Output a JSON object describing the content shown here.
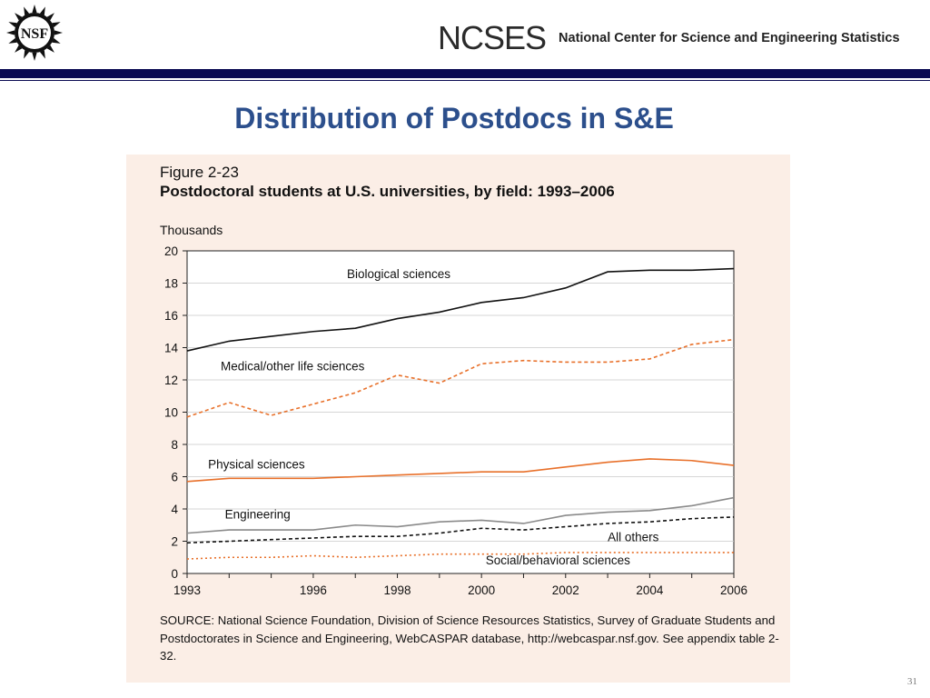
{
  "header": {
    "logo_text": "NSF",
    "org_abbr": "NCSES",
    "org_name": "National Center for Science and Engineering Statistics"
  },
  "slide": {
    "title": "Distribution of Postdocs in S&E",
    "page_number": "31"
  },
  "figure": {
    "label": "Figure 2-23",
    "title": "Postdoctoral students at U.S. universities, by field: 1993–2006",
    "units": "Thousands",
    "source": "SOURCE: National Science Foundation, Division of Science Resources Statistics, Survey of Graduate Students and Postdoctorates in Science and Engineering, WebCASPAR database, http://webcaspar.nsf.gov. See appendix table 2-32."
  },
  "chart_data": {
    "type": "line",
    "ylim": [
      0,
      20
    ],
    "xlim": [
      1993,
      2006
    ],
    "yticks": [
      0,
      2,
      4,
      6,
      8,
      10,
      12,
      14,
      16,
      18,
      20
    ],
    "xticks": [
      1993,
      1996,
      1998,
      2000,
      2002,
      2004,
      2006
    ],
    "grid": true,
    "x": [
      1993,
      1994,
      1995,
      1996,
      1997,
      1998,
      1999,
      2000,
      2001,
      2002,
      2003,
      2004,
      2005,
      2006
    ],
    "series": [
      {
        "name": "Biological sciences",
        "color": "#111111",
        "dash": "",
        "values": [
          13.8,
          14.4,
          14.7,
          15.0,
          15.2,
          15.8,
          16.2,
          16.8,
          17.1,
          17.7,
          18.7,
          18.8,
          18.8,
          18.9
        ]
      },
      {
        "name": "Medical/other life sciences",
        "color": "#e8702a",
        "dash": "4,3",
        "values": [
          9.7,
          10.6,
          9.8,
          10.5,
          11.2,
          12.3,
          11.8,
          13.0,
          13.2,
          13.1,
          13.1,
          13.3,
          14.2,
          14.5
        ]
      },
      {
        "name": "Physical sciences",
        "color": "#e8702a",
        "dash": "",
        "values": [
          5.7,
          5.9,
          5.9,
          5.9,
          6.0,
          6.1,
          6.2,
          6.3,
          6.3,
          6.6,
          6.9,
          7.1,
          7.0,
          6.7
        ]
      },
      {
        "name": "Engineering",
        "color": "#8a8a8a",
        "dash": "",
        "values": [
          2.5,
          2.7,
          2.7,
          2.7,
          3.0,
          2.9,
          3.2,
          3.3,
          3.1,
          3.6,
          3.8,
          3.9,
          4.2,
          4.7
        ]
      },
      {
        "name": "All others",
        "color": "#111111",
        "dash": "4,3",
        "values": [
          1.9,
          2.0,
          2.1,
          2.2,
          2.3,
          2.3,
          2.5,
          2.8,
          2.7,
          2.9,
          3.1,
          3.2,
          3.4,
          3.5
        ]
      },
      {
        "name": "Social/behavioral sciences",
        "color": "#e8702a",
        "dash": "2,3",
        "values": [
          0.9,
          1.0,
          1.0,
          1.1,
          1.0,
          1.1,
          1.2,
          1.2,
          1.2,
          1.3,
          1.3,
          1.3,
          1.3,
          1.3
        ]
      }
    ]
  }
}
